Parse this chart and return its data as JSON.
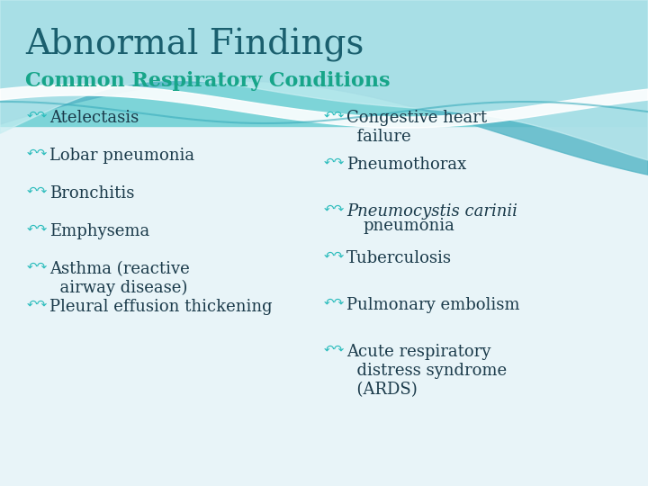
{
  "title": "Abnormal Findings",
  "subtitle": "Common Respiratory Conditions",
  "left_items": [
    "Atelectasis",
    "Lobar pneumonia",
    "Bronchitis",
    "Emphysema",
    "Asthma (reactive\n  airway disease)",
    "Pleural effusion thickening"
  ],
  "right_items": [
    "Congestive heart\n  failure",
    "Pneumothorax",
    "Pneumocystis carinii\n  pneumonia",
    "Tuberculosis",
    "Pulmonary embolism",
    "Acute respiratory\n  distress syndrome\n  (ARDS)"
  ],
  "right_items_italic": [
    false,
    false,
    true,
    false,
    false,
    false
  ],
  "title_color": "#1a5f6e",
  "subtitle_color": "#17a589",
  "bullet_color": "#2abcbc",
  "text_color": "#1a3a4a",
  "bg_color": "#e8f4f8",
  "wave_teal": "#5bbccc",
  "wave_light": "#a8dede",
  "title_fontsize": 28,
  "subtitle_fontsize": 16,
  "item_fontsize": 13
}
